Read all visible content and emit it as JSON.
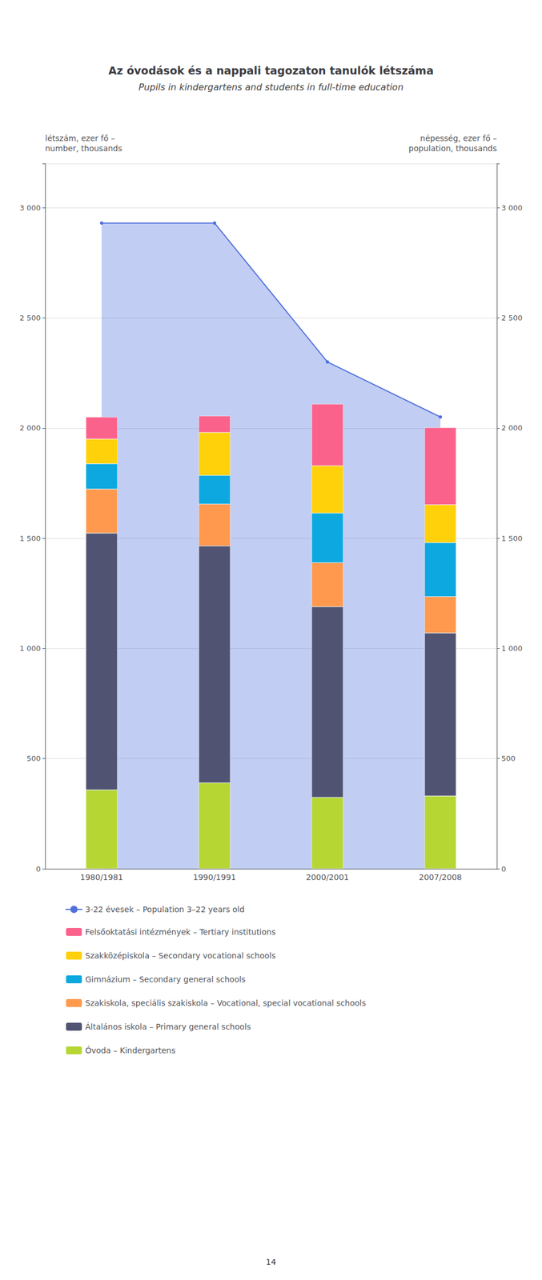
{
  "chart_data": {
    "type": "bar",
    "title": "Az óvodások és a nappali tagozaton tanulók létszáma",
    "subtitle": "Pupils in kindergartens and students in full-time education",
    "ylabel": [
      "létszám, ezer fő –",
      "number, thousands"
    ],
    "y2label": [
      "népesség, ezer fő –",
      "population, thousands"
    ],
    "categories": [
      "1980/1981",
      "1990/1991",
      "2000/2001",
      "2007/2008"
    ],
    "series": [
      {
        "name": "3-22 évesek – Population 3–22 years old",
        "type": "area",
        "axis": "y2",
        "values": [
          2930,
          2930,
          2300,
          2050
        ]
      },
      {
        "name": "Óvoda – Kindergartens",
        "type": "bar",
        "values": [
          358,
          390,
          324,
          330
        ]
      },
      {
        "name": "Általános iskola – Primary general schools",
        "type": "bar",
        "values": [
          1165,
          1075,
          865,
          740
        ]
      },
      {
        "name": "Szakiskola, speciális szakiskola – Vocational, special vocational schools",
        "type": "bar",
        "values": [
          200,
          190,
          200,
          165
        ]
      },
      {
        "name": "Gimnázium – Secondary general schools",
        "type": "bar",
        "values": [
          115,
          130,
          225,
          245
        ]
      },
      {
        "name": "Szakközépiskola – Secondary vocational schools",
        "type": "bar",
        "values": [
          112,
          195,
          215,
          172
        ]
      },
      {
        "name": "Felsőoktatási intézmények – Tertiary institutions",
        "type": "bar",
        "values": [
          100,
          75,
          280,
          350
        ]
      }
    ],
    "stacked": true,
    "ylim": [
      0,
      3200
    ],
    "yticks": [
      0,
      500,
      {
        "value": 1000,
        "label": "1 000"
      },
      {
        "value": 1500,
        "label": "1 500"
      },
      {
        "value": 2000,
        "label": "2 000"
      },
      {
        "value": 2500,
        "label": "2 500"
      },
      {
        "value": 3000,
        "label": "3 000"
      }
    ],
    "y2lim": [
      0,
      3200
    ],
    "y2ticks": [
      0,
      500,
      {
        "value": 1000,
        "label": "1 000"
      },
      {
        "value": 1500,
        "label": "1 500"
      },
      {
        "value": 2000,
        "label": "2 000"
      },
      {
        "value": 2500,
        "label": "2 500"
      },
      {
        "value": 3000,
        "label": "3 000"
      }
    ],
    "grid": true,
    "legend": "bottom",
    "annotations": [
      "14"
    ]
  }
}
